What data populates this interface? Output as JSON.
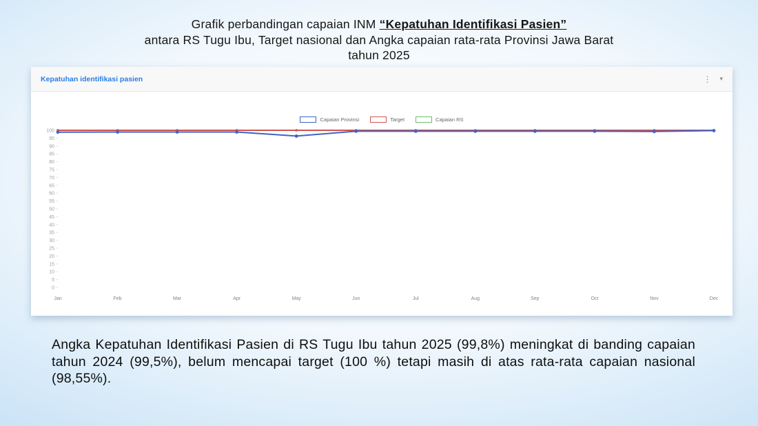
{
  "title": {
    "line1_prefix": "Grafik perbandingan capaian INM ",
    "line1_emphasis": "“Kepatuhan Identifikasi Pasien”",
    "line2": "antara RS Tugu Ibu, Target nasional dan Angka capaian rata-rata Provinsi Jawa Barat",
    "line3": "tahun 2025"
  },
  "panel": {
    "header_title": "Kepatuhan identifikasi pasien",
    "icons": {
      "kebab_menu": "⋮",
      "dropdown_caret": "▾"
    }
  },
  "chart_data": {
    "type": "line",
    "title": "Kepatuhan identifikasi pasien",
    "categories": [
      "Jan",
      "Feb",
      "Mar",
      "Apr",
      "May",
      "Jun",
      "Jul",
      "Aug",
      "Sep",
      "Oct",
      "Nov",
      "Dec"
    ],
    "series": [
      {
        "name": "Capaian Provinsi",
        "color": "#3f63c8",
        "values": [
          98.8,
          98.9,
          98.9,
          98.9,
          96.3,
          99.4,
          99.4,
          99.4,
          99.4,
          99.4,
          99.2,
          99.8
        ]
      },
      {
        "name": "Target",
        "color": "#cf5450",
        "values": [
          100,
          100,
          100,
          100,
          100,
          100,
          100,
          100,
          100,
          100,
          100,
          100
        ]
      },
      {
        "name": "Capaian RS",
        "color": "#6abf69",
        "values": [
          100,
          100,
          100,
          100,
          100,
          99.9,
          99.9,
          99.9,
          100,
          100,
          100,
          99.8
        ]
      }
    ],
    "ylim": [
      0,
      100
    ],
    "ytick_step": 5,
    "legend_position": "top",
    "grid": false,
    "axis_label_color": "#9aa0a6"
  },
  "caption": {
    "text": "Angka Kepatuhan Identifikasi Pasien di RS Tugu Ibu tahun 2025 (99,8%) meningkat di banding capaian tahun 2024 (99,5%), belum mencapai target (100 %) tetapi masih di atas rata-rata capaian nasional (98,55%)."
  },
  "colors": {
    "panel_title": "#2b7de9",
    "slide_bg_edge": "#a5cdee",
    "series_blue": "#3f63c8",
    "series_red": "#cf5450",
    "series_green": "#6abf69"
  }
}
